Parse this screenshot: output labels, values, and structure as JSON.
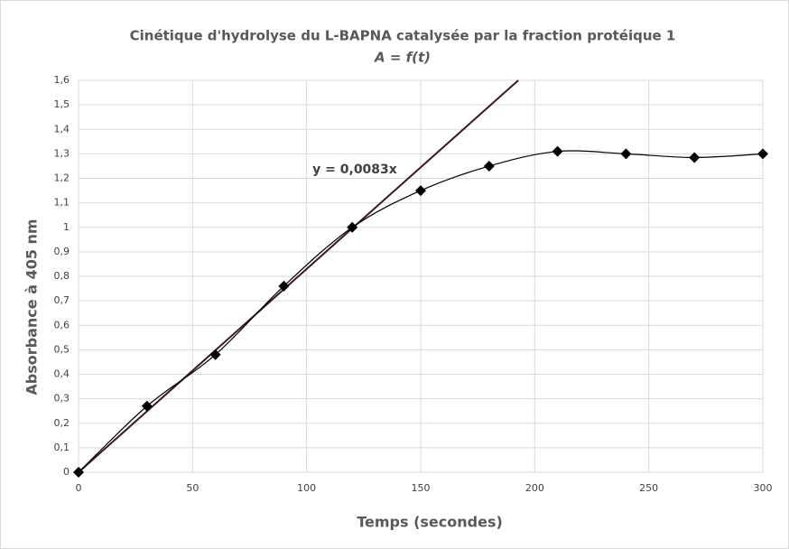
{
  "chart_data": {
    "type": "scatter",
    "title": "Cinétique d'hydrolyse du L-BAPNA catalysée par la fraction protéique 1",
    "subtitle": "A = f(t)",
    "x_label": "Temps (secondes)",
    "y_label": "Absorbance à 405 nm",
    "x": [
      0,
      30,
      60,
      90,
      120,
      150,
      180,
      210,
      240,
      270,
      300
    ],
    "series": [
      {
        "color": "#000000",
        "values": [
          0,
          0.27,
          0.48,
          0.76,
          1.0,
          1.15,
          1.25,
          1.31,
          1.3,
          1.285,
          1.3
        ]
      }
    ],
    "trendline": {
      "slope": 0.0083,
      "label": "y = 0,0083x",
      "color": "#3b1c1c"
    },
    "xlim": [
      0,
      300
    ],
    "xticks": [
      0,
      50,
      100,
      150,
      200,
      250,
      300
    ],
    "ylim": [
      0,
      1.6
    ],
    "yticks": [
      0,
      {
        "value": 0.1,
        "label": "0,1"
      },
      {
        "value": 0.2,
        "label": "0,2"
      },
      {
        "value": 0.3,
        "label": "0,3"
      },
      {
        "value": 0.4,
        "label": "0,4"
      },
      {
        "value": 0.5,
        "label": "0,5"
      },
      {
        "value": 0.6,
        "label": "0,6"
      },
      {
        "value": 0.7,
        "label": "0,7"
      },
      {
        "value": 0.8,
        "label": "0,8"
      },
      {
        "value": 0.9,
        "label": "0,9"
      },
      1,
      {
        "value": 1.1,
        "label": "1,1"
      },
      {
        "value": 1.2,
        "label": "1,2"
      },
      {
        "value": 1.3,
        "label": "1,3"
      },
      {
        "value": 1.4,
        "label": "1,4"
      },
      {
        "value": 1.5,
        "label": "1,5"
      },
      {
        "value": 1.6,
        "label": "1,6"
      }
    ],
    "grid": true,
    "smooth": true
  }
}
